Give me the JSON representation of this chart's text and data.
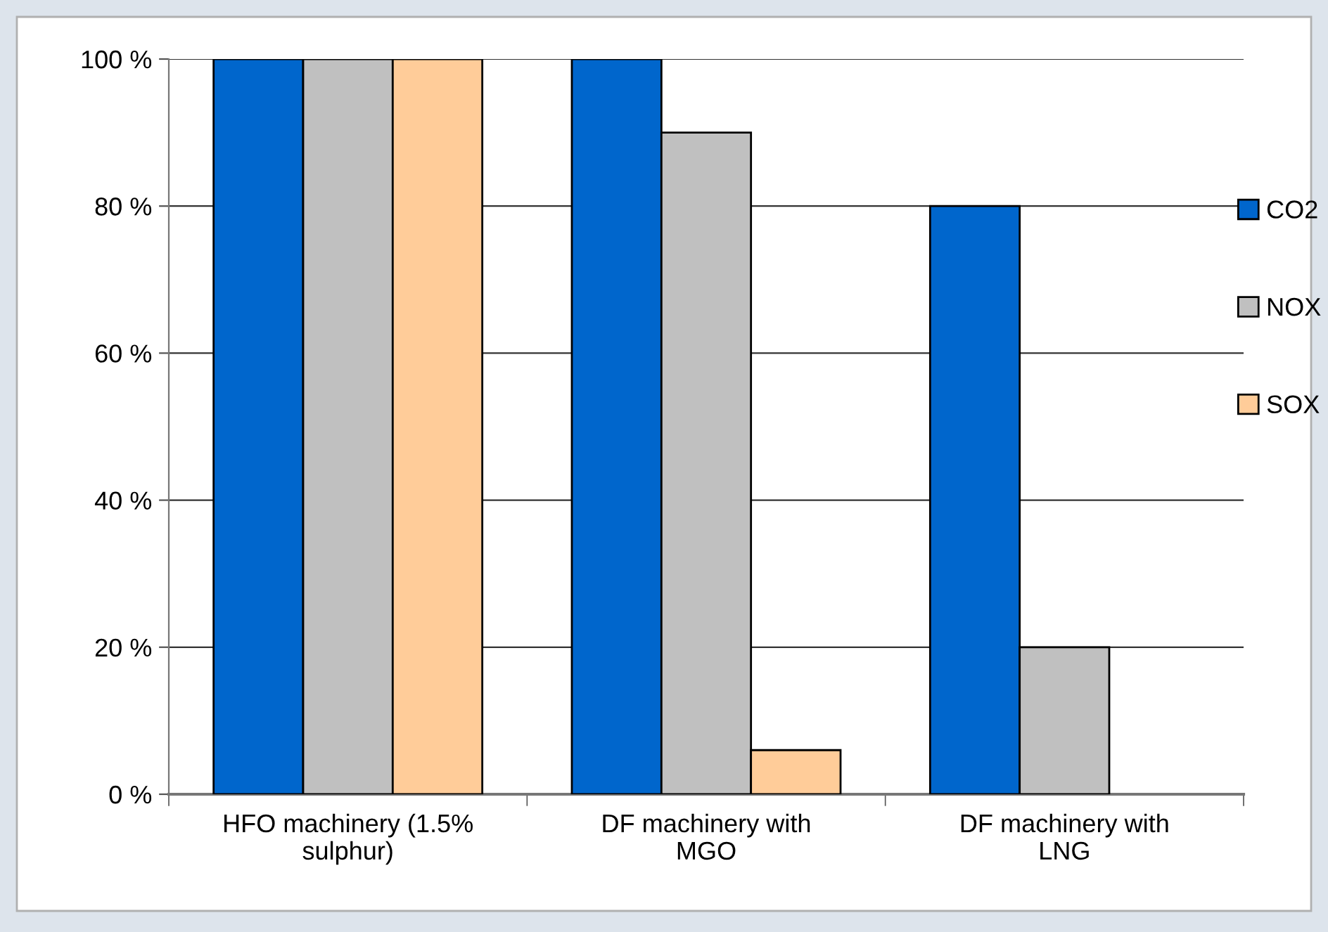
{
  "chart_data": {
    "type": "bar",
    "categories": [
      "HFO machinery (1.5%\nsulphur)",
      "DF machinery with\nMGO",
      "DF machinery with\nLNG"
    ],
    "series": [
      {
        "name": "CO2",
        "color": "#0066cc",
        "values": [
          100,
          100,
          80
        ]
      },
      {
        "name": "NOX",
        "color": "#c0c0c0",
        "values": [
          100,
          90,
          20
        ]
      },
      {
        "name": "SOX",
        "color": "#ffcc99",
        "values": [
          100,
          6,
          null
        ]
      }
    ],
    "ylim": [
      0,
      100
    ],
    "yticks": [
      {
        "value": 0,
        "label": "0 %"
      },
      {
        "value": 20,
        "label": "20 %"
      },
      {
        "value": 40,
        "label": "40 %"
      },
      {
        "value": 60,
        "label": "60 %"
      },
      {
        "value": 80,
        "label": "80 %"
      },
      {
        "value": 100,
        "label": "100 %"
      }
    ],
    "grid": "y",
    "legend": "right"
  }
}
